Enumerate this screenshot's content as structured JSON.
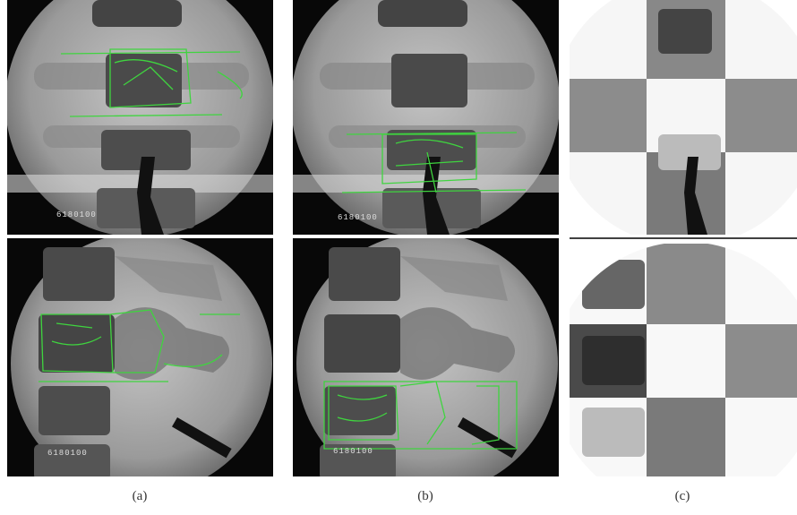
{
  "panels": [
    {
      "label": "(a)",
      "stamps": [
        "6180100",
        "6180100"
      ]
    },
    {
      "label": "(b)",
      "stamps": [
        "6180100",
        "6180100"
      ]
    },
    {
      "label": "(c)"
    }
  ]
}
